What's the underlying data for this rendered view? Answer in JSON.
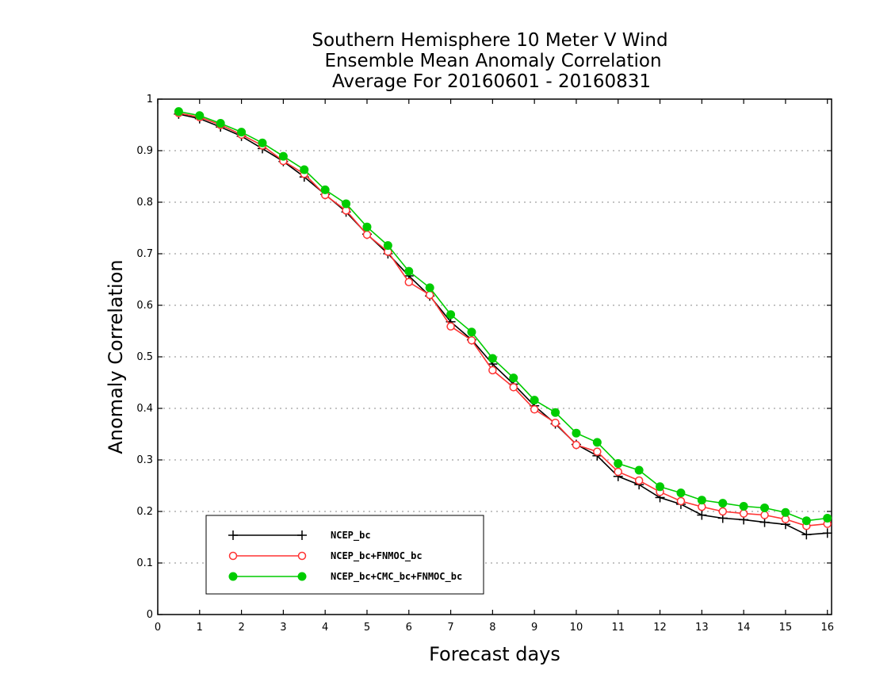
{
  "chart_data": {
    "type": "line",
    "title": [
      "Southern Hemisphere 10 Meter V Wind",
      "Ensemble Mean Anomaly Correlation",
      "Average For 20160601 - 20160831"
    ],
    "xlabel": "Forecast days",
    "ylabel": "Anomaly Correlation",
    "xlim": [
      0,
      16.1
    ],
    "ylim": [
      0,
      1
    ],
    "xticks": [
      "0",
      "1",
      "2",
      "3",
      "4",
      "5",
      "6",
      "7",
      "8",
      "9",
      "10",
      "11",
      "12",
      "13",
      "14",
      "15",
      "16"
    ],
    "yticks": [
      "0",
      "0.1",
      "0.2",
      "0.3",
      "0.4",
      "0.5",
      "0.6",
      "0.7",
      "0.8",
      "0.9",
      "1"
    ],
    "grid": "horizontal dotted",
    "legend_position": "bottom-left",
    "x": [
      0.5,
      1,
      1.5,
      2,
      2.5,
      3,
      3.5,
      4,
      4.5,
      5,
      5.5,
      6,
      6.5,
      7,
      7.5,
      8,
      8.5,
      9,
      9.5,
      10,
      10.5,
      11,
      11.5,
      12,
      12.5,
      13,
      13.5,
      14,
      14.5,
      15,
      15.5,
      16
    ],
    "series": [
      {
        "name": "NCEP_bc",
        "color": "#000000",
        "marker": "plus",
        "values": [
          0.971,
          0.962,
          0.946,
          0.928,
          0.904,
          0.879,
          0.849,
          0.815,
          0.781,
          0.738,
          0.7,
          0.657,
          0.618,
          0.568,
          0.533,
          0.486,
          0.447,
          0.405,
          0.37,
          0.33,
          0.308,
          0.268,
          0.252,
          0.227,
          0.214,
          0.193,
          0.187,
          0.184,
          0.179,
          0.175,
          0.155,
          0.158
        ]
      },
      {
        "name": "NCEP_bc+FNMOC_bc",
        "color": "#ff3333",
        "marker": "open-circle",
        "values": [
          0.973,
          0.965,
          0.95,
          0.931,
          0.91,
          0.88,
          0.855,
          0.814,
          0.784,
          0.737,
          0.704,
          0.645,
          0.62,
          0.559,
          0.532,
          0.474,
          0.441,
          0.398,
          0.372,
          0.329,
          0.316,
          0.277,
          0.26,
          0.238,
          0.22,
          0.209,
          0.2,
          0.196,
          0.193,
          0.185,
          0.172,
          0.176
        ]
      },
      {
        "name": "NCEP_bc+CMC_bc+FNMOC_bc",
        "color": "#00cc00",
        "marker": "filled-circle",
        "values": [
          0.976,
          0.968,
          0.953,
          0.936,
          0.915,
          0.889,
          0.863,
          0.824,
          0.797,
          0.752,
          0.716,
          0.666,
          0.634,
          0.582,
          0.548,
          0.497,
          0.459,
          0.416,
          0.392,
          0.352,
          0.334,
          0.293,
          0.28,
          0.248,
          0.236,
          0.222,
          0.216,
          0.21,
          0.207,
          0.198,
          0.182,
          0.187
        ]
      }
    ]
  }
}
